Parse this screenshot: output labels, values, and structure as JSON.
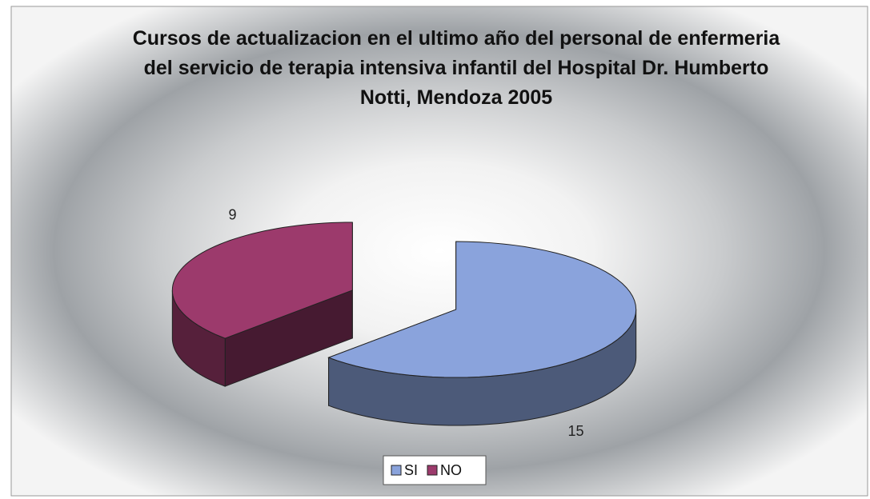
{
  "chart_data": {
    "type": "pie3d",
    "title": "Cursos de actualizacion en el ultimo año del personal de enfermeria del servicio de terapia intensiva infantil del Hospital Dr. Humberto Notti, Mendoza 2005",
    "categories": [
      "SI",
      "NO"
    ],
    "values": [
      15,
      9
    ],
    "colors": [
      "#8aa3dc",
      "#9c3a6c"
    ],
    "legend": "bottom"
  }
}
